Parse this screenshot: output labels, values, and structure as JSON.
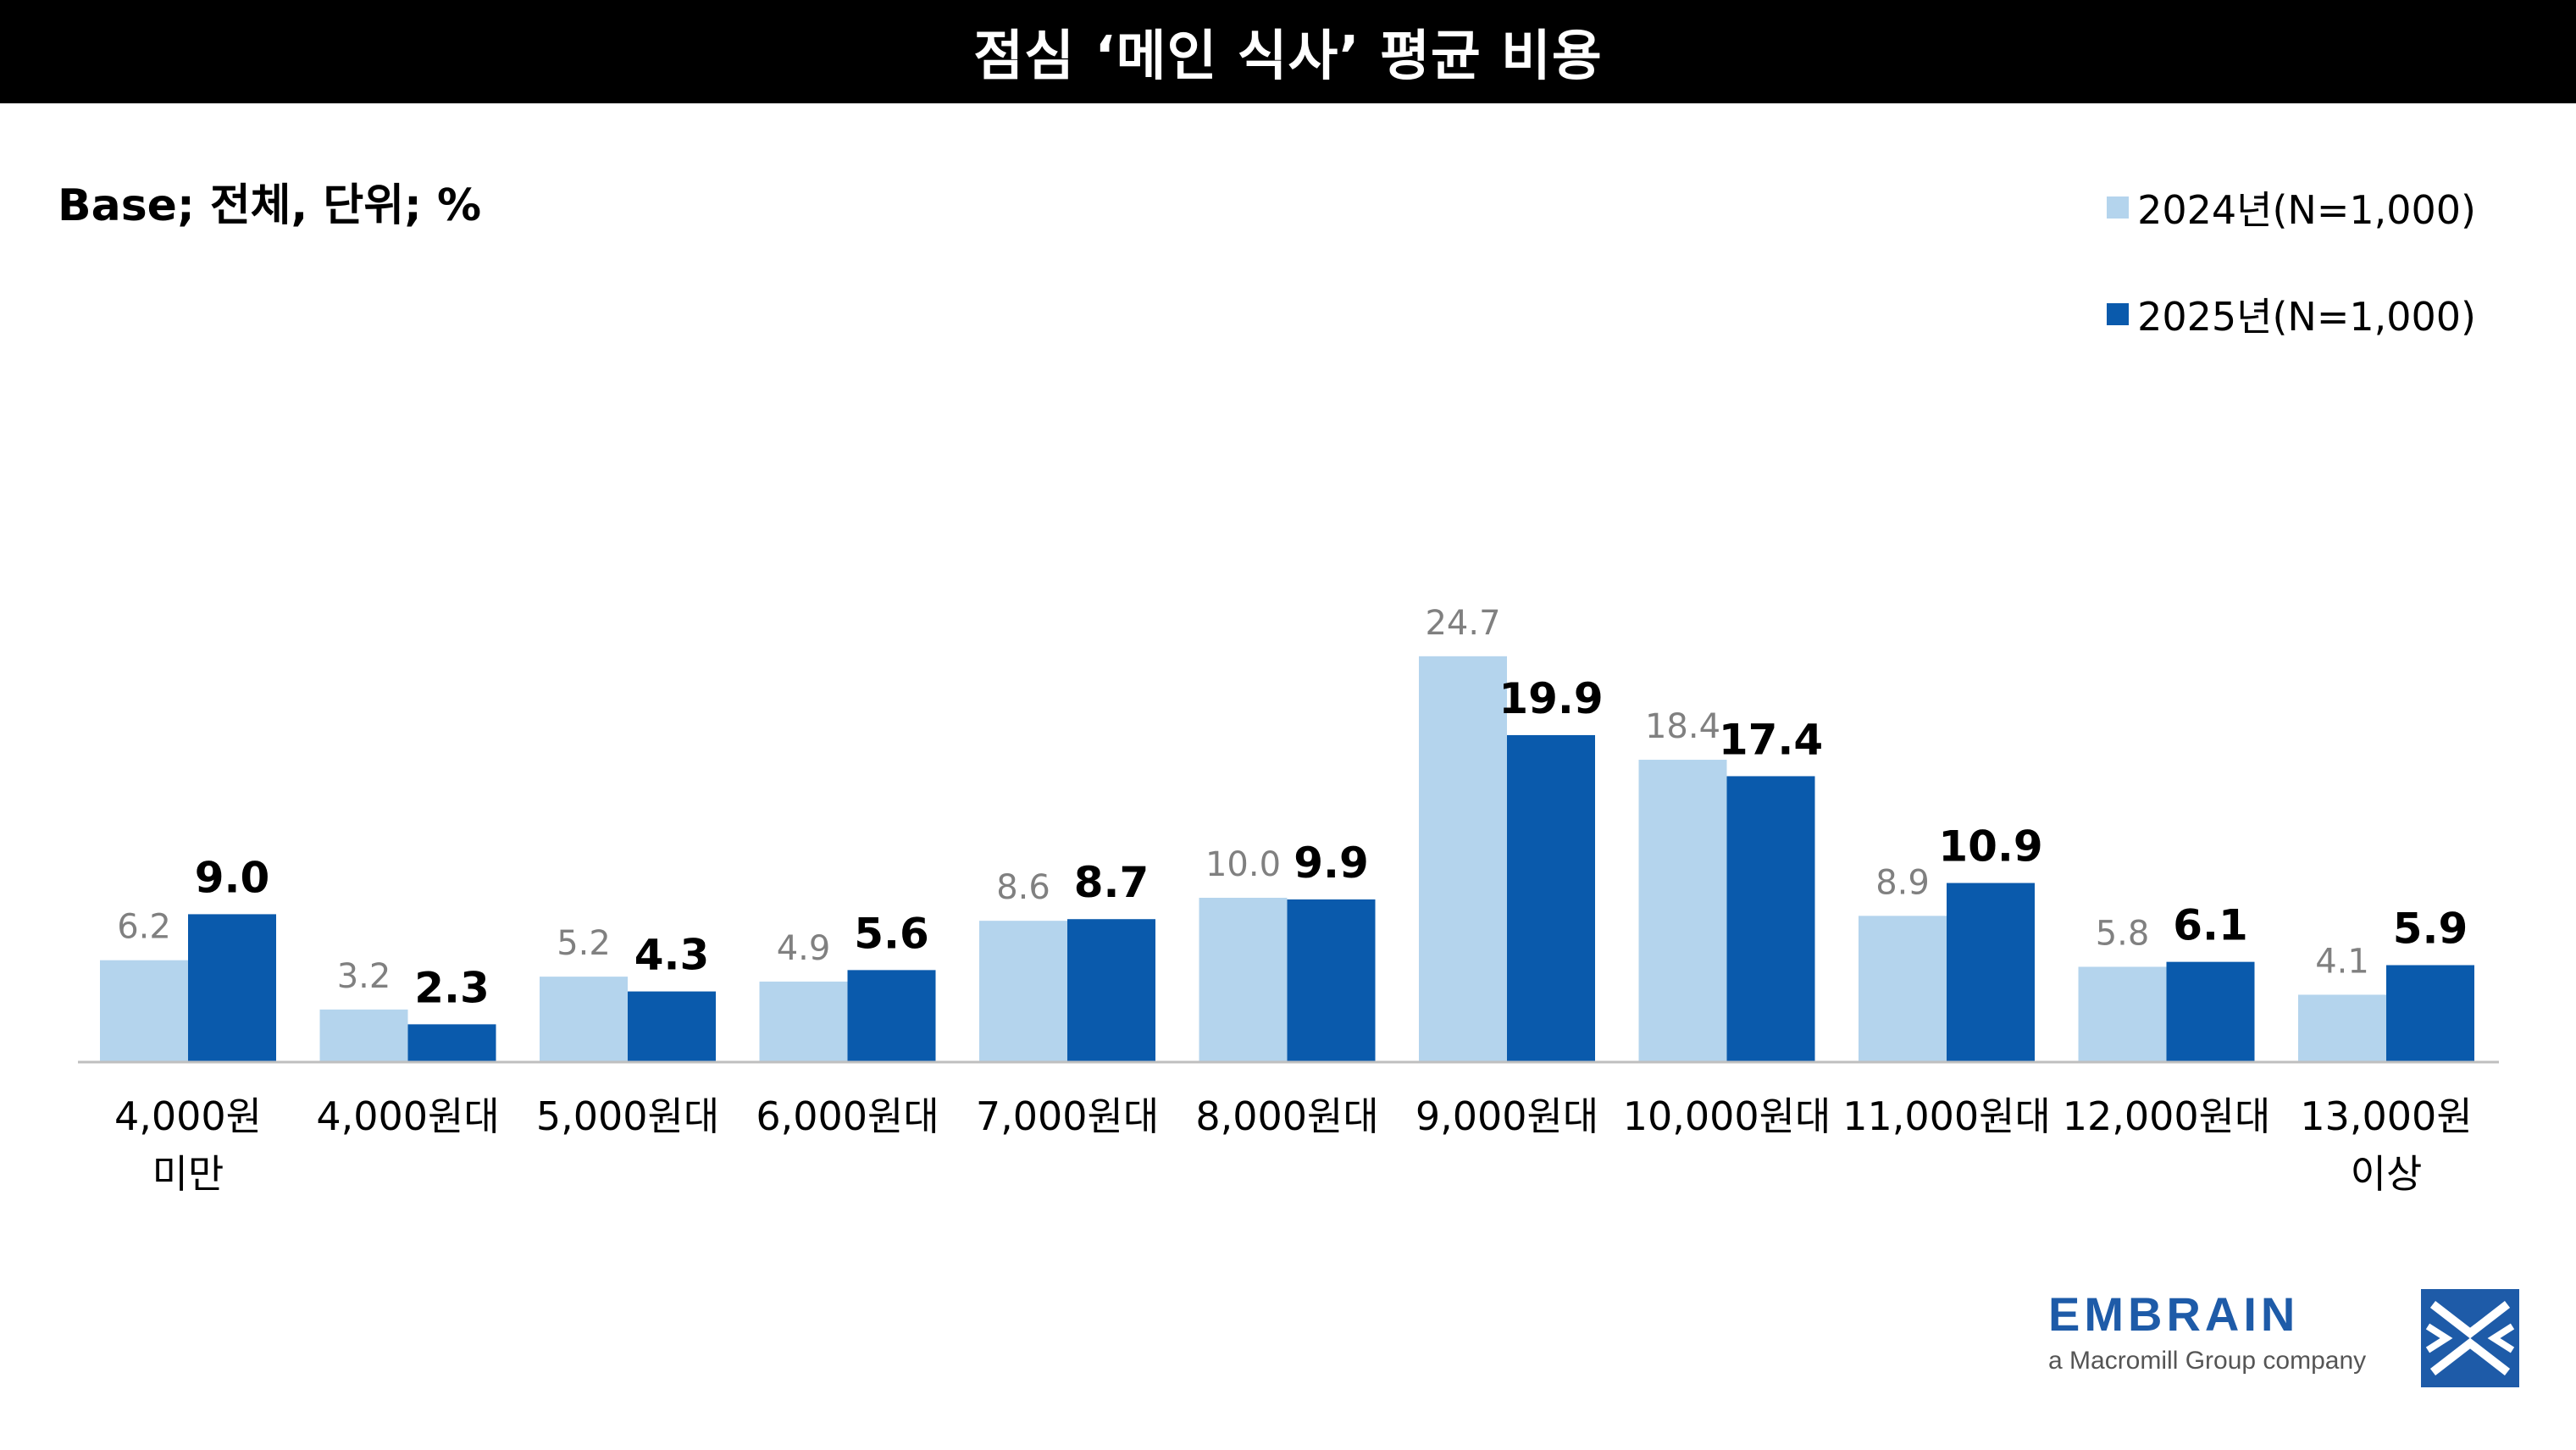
{
  "title": "점심 ‘메인 식사’ 평균 비용",
  "base_note": "Base; 전체, 단위; %",
  "colors": {
    "series_2024": "#b4d4ed",
    "series_2025": "#0a5aac",
    "label_2024": "#808080",
    "label_2025": "#000000",
    "axis": "#bfbfbf"
  },
  "chart_data": {
    "type": "bar",
    "categories": [
      [
        "4,000원",
        "미만"
      ],
      [
        "4,000원대"
      ],
      [
        "5,000원대"
      ],
      [
        "6,000원대"
      ],
      [
        "7,000원대"
      ],
      [
        "8,000원대"
      ],
      [
        "9,000원대"
      ],
      [
        "10,000원대"
      ],
      [
        "11,000원대"
      ],
      [
        "12,000원대"
      ],
      [
        "13,000원",
        "이상"
      ]
    ],
    "series": [
      {
        "name": "2024년(N=1,000)",
        "values": [
          6.2,
          3.2,
          5.2,
          4.9,
          8.6,
          10.0,
          24.7,
          18.4,
          8.9,
          5.8,
          4.1
        ]
      },
      {
        "name": "2025년(N=1,000)",
        "values": [
          9.0,
          2.3,
          4.3,
          5.6,
          8.7,
          9.9,
          19.9,
          17.4,
          10.9,
          6.1,
          5.9
        ]
      }
    ],
    "ylim": [
      0,
      30
    ],
    "grid": false,
    "legend_position": "top-right",
    "data_labels": true
  },
  "brand": {
    "name": "EMBRAIN",
    "tagline": "a Macromill Group company",
    "logo_icon": "embrain-logo-icon"
  }
}
